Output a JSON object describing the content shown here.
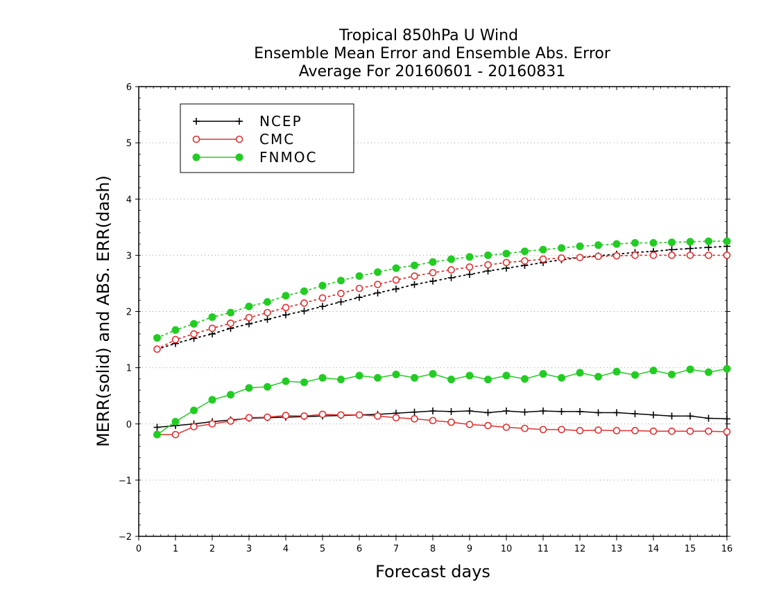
{
  "chart_data": {
    "type": "line",
    "title": [
      "Tropical 850hPa U Wind",
      "Ensemble Mean Error and Ensemble Abs. Error",
      "Average For 20160601 - 20160831"
    ],
    "xlabel": "Forecast days",
    "ylabel": "MERR(solid) and ABS. ERR(dash)",
    "xlim": [
      0,
      16
    ],
    "ylim": [
      -2,
      6
    ],
    "xticks": [
      "0",
      "1",
      "2",
      "3",
      "4",
      "5",
      "6",
      "7",
      "8",
      "9",
      "10",
      "11",
      "12",
      "13",
      "14",
      "15",
      "16"
    ],
    "yticks": [
      "-2",
      "-1",
      "0",
      "1",
      "2",
      "3",
      "4",
      "5",
      "6"
    ],
    "grid": "horizontal dotted",
    "legend_position": "top-left",
    "x": [
      0.5,
      1,
      1.5,
      2,
      2.5,
      3,
      3.5,
      4,
      4.5,
      5,
      5.5,
      6,
      6.5,
      7,
      7.5,
      8,
      8.5,
      9,
      9.5,
      10,
      10.5,
      11,
      11.5,
      12,
      12.5,
      13,
      13.5,
      14,
      14.5,
      15,
      15.5,
      16
    ],
    "series": [
      {
        "name": "NCEP",
        "color": "#000000",
        "marker": "plus",
        "merr": [
          -0.06,
          -0.03,
          0.0,
          0.04,
          0.07,
          0.1,
          0.11,
          0.12,
          0.13,
          0.14,
          0.15,
          0.16,
          0.17,
          0.19,
          0.21,
          0.23,
          0.22,
          0.23,
          0.2,
          0.23,
          0.21,
          0.23,
          0.22,
          0.22,
          0.2,
          0.2,
          0.18,
          0.16,
          0.14,
          0.14,
          0.1,
          0.09
        ],
        "abs_err": [
          1.33,
          1.43,
          1.52,
          1.6,
          1.7,
          1.78,
          1.86,
          1.94,
          2.01,
          2.09,
          2.17,
          2.25,
          2.33,
          2.4,
          2.48,
          2.54,
          2.6,
          2.66,
          2.72,
          2.77,
          2.82,
          2.87,
          2.92,
          2.96,
          2.99,
          3.02,
          3.05,
          3.07,
          3.1,
          3.12,
          3.14,
          3.16
        ]
      },
      {
        "name": "CMC",
        "color": "#e03030",
        "marker": "open-circle",
        "merr": [
          -0.19,
          -0.19,
          -0.05,
          0.0,
          0.05,
          0.11,
          0.12,
          0.15,
          0.14,
          0.17,
          0.16,
          0.16,
          0.14,
          0.11,
          0.09,
          0.06,
          0.03,
          -0.01,
          -0.03,
          -0.06,
          -0.08,
          -0.1,
          -0.1,
          -0.12,
          -0.11,
          -0.12,
          -0.12,
          -0.13,
          -0.13,
          -0.13,
          -0.13,
          -0.14
        ],
        "abs_err": [
          1.33,
          1.5,
          1.6,
          1.7,
          1.79,
          1.89,
          1.98,
          2.07,
          2.15,
          2.24,
          2.32,
          2.41,
          2.48,
          2.56,
          2.63,
          2.69,
          2.74,
          2.79,
          2.83,
          2.87,
          2.9,
          2.93,
          2.95,
          2.96,
          2.98,
          2.99,
          3.0,
          3.0,
          3.0,
          3.0,
          3.0,
          3.0
        ]
      },
      {
        "name": "FNMOC",
        "color": "#22cc22",
        "marker": "filled-circle",
        "merr": [
          -0.19,
          0.04,
          0.24,
          0.43,
          0.52,
          0.64,
          0.66,
          0.76,
          0.74,
          0.82,
          0.79,
          0.86,
          0.82,
          0.88,
          0.82,
          0.89,
          0.79,
          0.86,
          0.79,
          0.86,
          0.8,
          0.89,
          0.82,
          0.91,
          0.84,
          0.93,
          0.87,
          0.95,
          0.88,
          0.97,
          0.92,
          0.98
        ],
        "abs_err": [
          1.53,
          1.67,
          1.78,
          1.9,
          1.98,
          2.09,
          2.17,
          2.28,
          2.36,
          2.46,
          2.55,
          2.63,
          2.7,
          2.77,
          2.82,
          2.88,
          2.93,
          2.97,
          3.0,
          3.03,
          3.07,
          3.1,
          3.13,
          3.16,
          3.18,
          3.2,
          3.22,
          3.22,
          3.23,
          3.24,
          3.25,
          3.25
        ]
      }
    ]
  }
}
